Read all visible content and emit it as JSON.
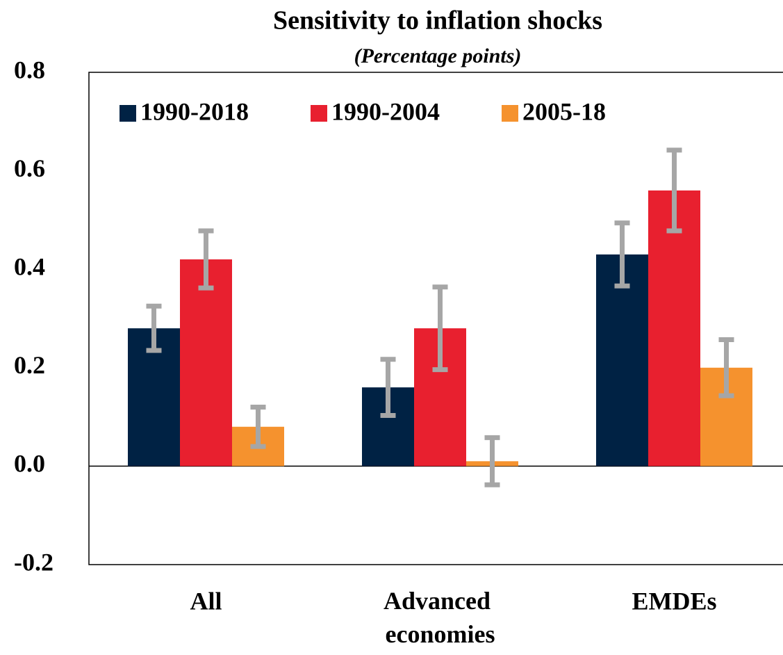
{
  "chart_data": {
    "type": "bar",
    "title": "Sensitivity to inflation shocks",
    "subtitle": "(Percentage points)",
    "categories": [
      "All",
      "Advanced economies",
      "EMDEs"
    ],
    "series": [
      {
        "name": "1990-2018",
        "color": "#002244",
        "values": [
          0.28,
          0.16,
          0.43
        ],
        "errors": [
          0.045,
          0.057,
          0.064
        ]
      },
      {
        "name": "1990-2004",
        "color": "#e8202f",
        "values": [
          0.42,
          0.28,
          0.56
        ],
        "errors": [
          0.058,
          0.084,
          0.082
        ]
      },
      {
        "name": "2005-18",
        "color": "#f5922e",
        "values": [
          0.08,
          0.01,
          0.2
        ],
        "errors": [
          0.04,
          0.048,
          0.057
        ]
      }
    ],
    "error_color": "#a6a6a6",
    "ylim": [
      -0.2,
      0.8
    ],
    "yticks": [
      -0.2,
      {
        "value": 0,
        "label": "0.0"
      },
      0.2,
      0.4,
      0.6,
      0.8
    ],
    "grid": false,
    "legend": "top-left"
  }
}
